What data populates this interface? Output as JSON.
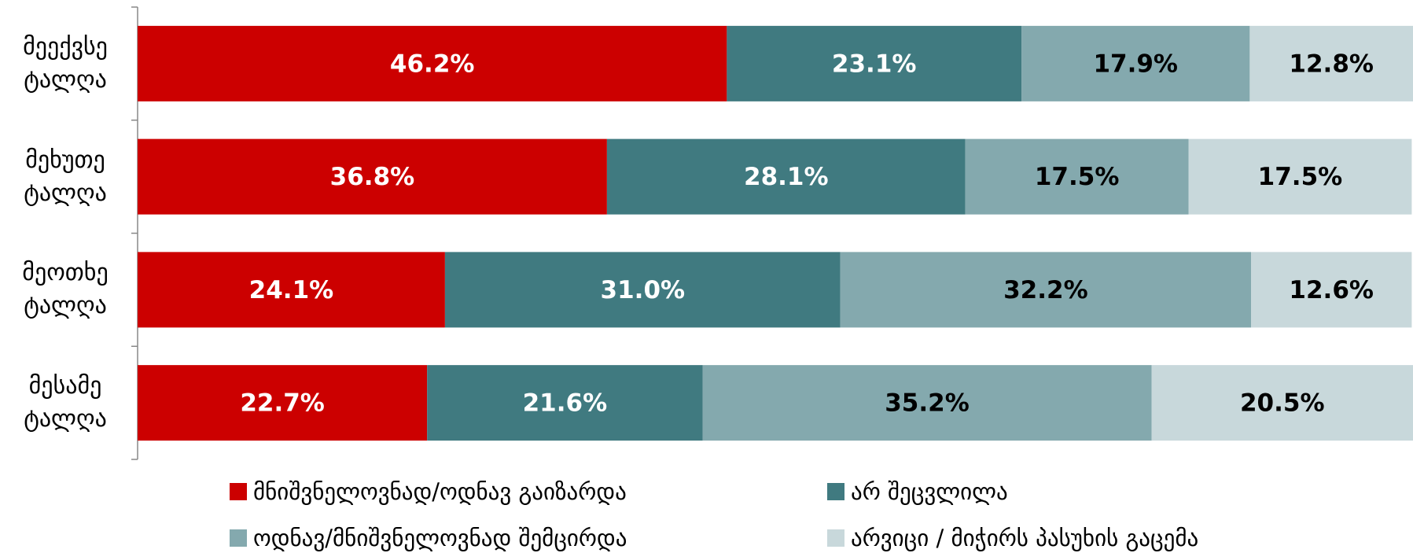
{
  "chart_data": {
    "type": "stacked_bar_horizontal",
    "categories": [
      "მეექვსე ტალღა",
      "მეხუთე ტალღა",
      "მეოთხე ტალღა",
      "მესამე ტალღა"
    ],
    "xlim": [
      0,
      100
    ],
    "series": [
      {
        "name": "მნიშვნელოვნად/ოდნავ გაიზარდა",
        "color": "#cc0000",
        "label_color": "#ffffff",
        "values": [
          46.2,
          36.8,
          24.1,
          22.7
        ],
        "value_labels": [
          "46.2%",
          "36.8%",
          "24.1%",
          "22.7%"
        ]
      },
      {
        "name": "არ შეცვლილა",
        "color": "#407a80",
        "label_color": "#ffffff",
        "values": [
          23.1,
          28.1,
          31.0,
          21.6
        ],
        "value_labels": [
          "23.1%",
          "28.1%",
          "31.0%",
          "21.6%"
        ]
      },
      {
        "name": "ოდნავ/მნიშვნელოვნად შემცირდა",
        "color": "#84a9ae",
        "label_color": "#000000",
        "values": [
          17.9,
          17.5,
          32.2,
          35.2
        ],
        "value_labels": [
          "17.9%",
          "17.5%",
          "32.2%",
          "35.2%"
        ]
      },
      {
        "name": "არვიცი / მიჭირს პასუხის გაცემა",
        "color": "#c8d8db",
        "label_color": "#000000",
        "values": [
          12.8,
          17.5,
          12.6,
          20.5
        ],
        "value_labels": [
          "12.8%",
          "17.5%",
          "12.6%",
          "20.5%"
        ]
      }
    ]
  }
}
